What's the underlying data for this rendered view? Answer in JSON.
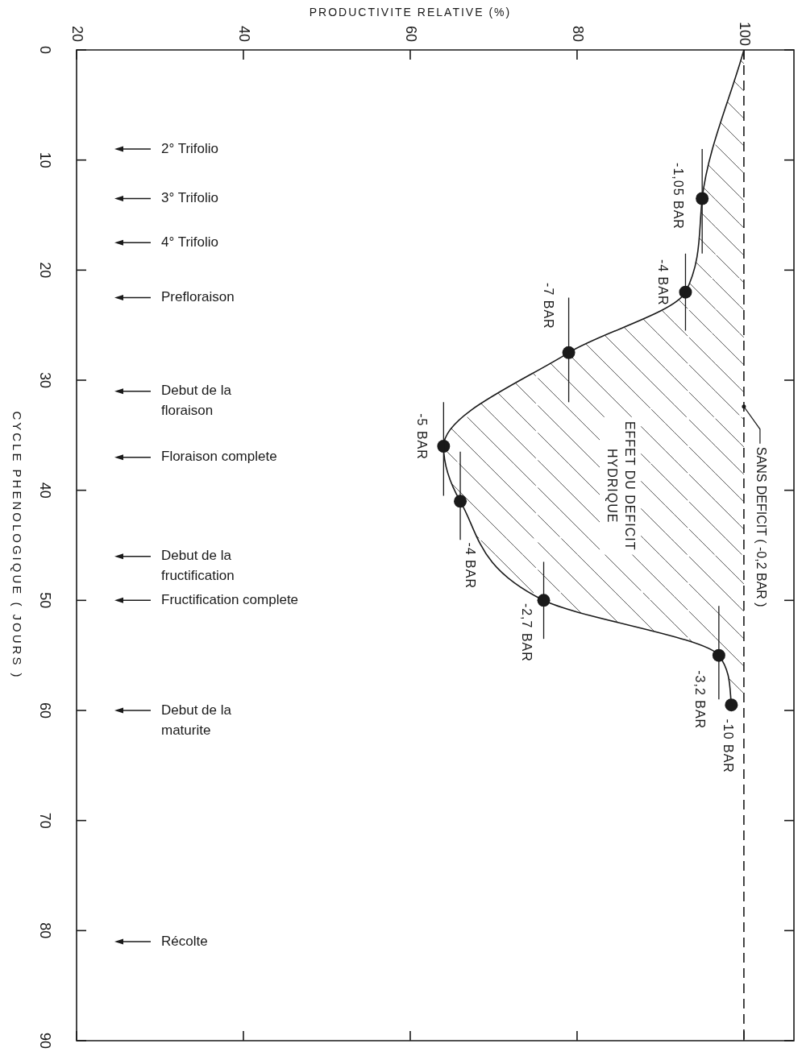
{
  "chart_data": {
    "type": "line",
    "xlabel": "PRODUCTIVITE RELATIVE (%)",
    "ylabel": "CYCLE PHENOLOGIQUE ( JOURS )",
    "xlim": [
      20,
      106
    ],
    "xticks": [
      20,
      40,
      60,
      80,
      100
    ],
    "ylim": [
      90,
      0
    ],
    "yticks": [
      0,
      10,
      20,
      30,
      40,
      50,
      60,
      70,
      80,
      90
    ],
    "series": [
      {
        "type": "line",
        "color": "#1a1a1a",
        "line_style": "solid",
        "x": [
          100,
          95,
          93,
          79,
          64,
          66,
          76,
          97,
          98.5
        ],
        "values": [
          0,
          13.5,
          22,
          27.5,
          36,
          41,
          50,
          55,
          59.5
        ]
      },
      {
        "type": "scatter",
        "color": "#1a1a1a",
        "marker": "circle",
        "x": [
          95,
          93,
          79,
          64,
          66,
          76,
          97,
          98.5
        ],
        "values": [
          13.5,
          22,
          27.5,
          36,
          41,
          50,
          55,
          59.5
        ],
        "errors": [
          [
            9,
            18.5
          ],
          [
            18.5,
            25.5
          ],
          [
            22.5,
            32
          ],
          [
            32,
            40.5
          ],
          [
            36.5,
            44.5
          ],
          [
            46.5,
            53.5
          ],
          [
            50.5,
            59
          ],
          null
        ]
      }
    ],
    "ref_lines": [
      {
        "axis": "x",
        "value": 100,
        "label": "SANS DEFICIT ( -0,2 BAR )",
        "line_style": "dashed"
      },
      {
        "axis": "y",
        "value": 9,
        "label": "2° Trifolio"
      },
      {
        "axis": "y",
        "value": 13.5,
        "label": "3° Trifolio"
      },
      {
        "axis": "y",
        "value": 17.5,
        "label": "4° Trifolio"
      },
      {
        "axis": "y",
        "value": 22.5,
        "label": "Prefloraison"
      },
      {
        "axis": "y",
        "value": 31,
        "label": "Debut de la\nfloraison"
      },
      {
        "axis": "y",
        "value": 37,
        "label": "Floraison complete"
      },
      {
        "axis": "y",
        "value": 46,
        "label": "Debut de la\nfructification"
      },
      {
        "axis": "y",
        "value": 50,
        "label": "Fructification complete"
      },
      {
        "axis": "y",
        "value": 60,
        "label": "Debut de la\nmaturite"
      },
      {
        "axis": "y",
        "value": 81,
        "label": "Récolte"
      }
    ],
    "annotations": [
      {
        "text": "-1,05 BAR",
        "x": 95,
        "y": 13.5
      },
      {
        "text": "-4 BAR",
        "x": 93,
        "y": 22
      },
      {
        "text": "-7 BAR",
        "x": 79,
        "y": 27.5
      },
      {
        "text": "-5 BAR",
        "x": 64,
        "y": 36
      },
      {
        "text": "-4 BAR",
        "x": 66,
        "y": 44.5
      },
      {
        "text": "-2,7 BAR",
        "x": 76,
        "y": 50
      },
      {
        "text": "-3,2 BAR",
        "x": 97,
        "y": 55
      },
      {
        "text": "-10 BAR",
        "x": 98.5,
        "y": 59.5
      },
      "EFFET DU DEFICIT\nHYDRIQUE"
    ]
  }
}
